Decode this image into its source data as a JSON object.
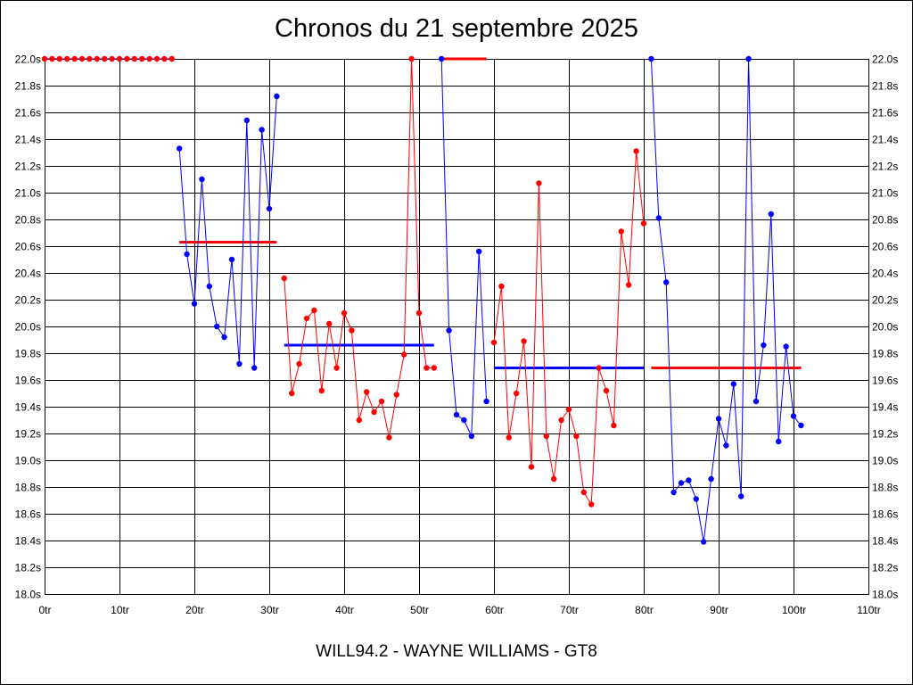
{
  "title": "Chronos du 21 septembre 2025",
  "subtitle": "WILL94.2 - WAYNE WILLIAMS - GT8",
  "chart_data": {
    "type": "line",
    "title": "Chronos du 21 septembre 2025",
    "subtitle": "WILL94.2 - WAYNE WILLIAMS - GT8",
    "xlabel": "",
    "ylabel": "",
    "xlim": [
      0,
      110
    ],
    "ylim": [
      18.0,
      22.0
    ],
    "x_ticks": [
      0,
      10,
      20,
      30,
      40,
      50,
      60,
      70,
      80,
      90,
      100,
      110
    ],
    "x_tick_labels": [
      "0tr",
      "10tr",
      "20tr",
      "30tr",
      "40tr",
      "50tr",
      "60tr",
      "70tr",
      "80tr",
      "90tr",
      "100tr",
      "110tr"
    ],
    "y_ticks": [
      18.0,
      18.2,
      18.4,
      18.6,
      18.8,
      19.0,
      19.2,
      19.4,
      19.6,
      19.8,
      20.0,
      20.2,
      20.4,
      20.6,
      20.8,
      21.0,
      21.2,
      21.4,
      21.6,
      21.8,
      22.0
    ],
    "y_tick_labels": [
      "18.0s",
      "18.2s",
      "18.4s",
      "18.6s",
      "18.8s",
      "19.0s",
      "19.2s",
      "19.4s",
      "19.6s",
      "19.8s",
      "20.0s",
      "20.2s",
      "20.4s",
      "20.6s",
      "20.8s",
      "21.0s",
      "21.2s",
      "21.4s",
      "21.6s",
      "21.8s",
      "22.0s"
    ],
    "y_axis_right": true,
    "grid": true,
    "series": [
      {
        "color": "#0000ff",
        "marker_color": "#ff0000",
        "points": [
          [
            0,
            22.0
          ],
          [
            1,
            22.0
          ],
          [
            2,
            22.0
          ],
          [
            3,
            22.0
          ],
          [
            4,
            22.0
          ],
          [
            5,
            22.0
          ],
          [
            6,
            22.0
          ],
          [
            7,
            22.0
          ],
          [
            8,
            22.0
          ],
          [
            9,
            22.0
          ],
          [
            10,
            22.0
          ],
          [
            11,
            22.0
          ],
          [
            12,
            22.0
          ],
          [
            13,
            22.0
          ],
          [
            14,
            22.0
          ],
          [
            15,
            22.0
          ],
          [
            16,
            22.0
          ],
          [
            17,
            22.0
          ]
        ]
      },
      {
        "color": "#0000ff",
        "marker_color": "#0000ff",
        "points": [
          [
            18,
            21.33
          ],
          [
            19,
            20.54
          ],
          [
            20,
            20.17
          ],
          [
            21,
            21.1
          ],
          [
            22,
            20.3
          ],
          [
            23,
            20.0
          ],
          [
            24,
            19.92
          ],
          [
            25,
            20.5
          ],
          [
            26,
            19.72
          ],
          [
            27,
            21.54
          ],
          [
            28,
            19.69
          ],
          [
            29,
            21.47
          ],
          [
            30,
            20.88
          ],
          [
            31,
            21.72
          ]
        ]
      },
      {
        "color": "#ff0000",
        "marker_color": "#ff0000",
        "points": [
          [
            32,
            20.36
          ],
          [
            33,
            19.5
          ],
          [
            34,
            19.72
          ],
          [
            35,
            20.06
          ],
          [
            36,
            20.12
          ],
          [
            37,
            19.52
          ],
          [
            38,
            20.02
          ],
          [
            39,
            19.69
          ],
          [
            40,
            20.1
          ],
          [
            41,
            19.97
          ],
          [
            42,
            19.3
          ],
          [
            43,
            19.51
          ],
          [
            44,
            19.36
          ],
          [
            45,
            19.44
          ],
          [
            46,
            19.17
          ],
          [
            47,
            19.49
          ],
          [
            48,
            19.79
          ],
          [
            49,
            22.0
          ],
          [
            50,
            20.1
          ],
          [
            51,
            19.69
          ],
          [
            52,
            19.69
          ]
        ]
      },
      {
        "color": "#0000ff",
        "marker_color": "#0000ff",
        "points": [
          [
            53,
            22.0
          ],
          [
            54,
            19.97
          ],
          [
            55,
            19.34
          ],
          [
            56,
            19.3
          ],
          [
            57,
            19.18
          ],
          [
            58,
            20.56
          ],
          [
            59,
            19.44
          ]
        ]
      },
      {
        "color": "#ff0000",
        "marker_color": "#ff0000",
        "points": [
          [
            60,
            19.88
          ],
          [
            61,
            20.3
          ],
          [
            62,
            19.17
          ],
          [
            63,
            19.5
          ],
          [
            64,
            19.89
          ],
          [
            65,
            18.95
          ],
          [
            66,
            21.07
          ],
          [
            67,
            19.18
          ],
          [
            68,
            18.86
          ],
          [
            69,
            19.3
          ],
          [
            70,
            19.38
          ],
          [
            71,
            19.18
          ],
          [
            72,
            18.76
          ],
          [
            73,
            18.67
          ],
          [
            74,
            19.69
          ],
          [
            75,
            19.52
          ],
          [
            76,
            19.26
          ],
          [
            77,
            20.71
          ],
          [
            78,
            20.31
          ],
          [
            79,
            21.31
          ],
          [
            80,
            20.77
          ]
        ]
      },
      {
        "color": "#0000ff",
        "marker_color": "#0000ff",
        "points": [
          [
            81,
            22.0
          ],
          [
            82,
            20.81
          ],
          [
            83,
            20.33
          ],
          [
            84,
            18.76
          ],
          [
            85,
            18.83
          ],
          [
            86,
            18.85
          ],
          [
            87,
            18.71
          ],
          [
            88,
            18.39
          ],
          [
            89,
            18.86
          ],
          [
            90,
            19.31
          ],
          [
            91,
            19.11
          ],
          [
            92,
            19.57
          ],
          [
            93,
            18.73
          ],
          [
            94,
            22.0
          ],
          [
            95,
            19.44
          ],
          [
            96,
            19.86
          ],
          [
            97,
            20.84
          ],
          [
            98,
            19.14
          ],
          [
            99,
            19.85
          ],
          [
            100,
            19.33
          ],
          [
            101,
            19.26
          ]
        ]
      }
    ],
    "averages": [
      {
        "color": "#ff0000",
        "x_start": 18,
        "x_end": 31,
        "value": 20.63
      },
      {
        "color": "#0000ff",
        "x_start": 32,
        "x_end": 52,
        "value": 19.86
      },
      {
        "color": "#ff0000",
        "x_start": 53,
        "x_end": 59,
        "value": 22.0
      },
      {
        "color": "#0000ff",
        "x_start": 60,
        "x_end": 80,
        "value": 19.69
      },
      {
        "color": "#ff0000",
        "x_start": 81,
        "x_end": 101,
        "value": 19.69
      }
    ]
  }
}
